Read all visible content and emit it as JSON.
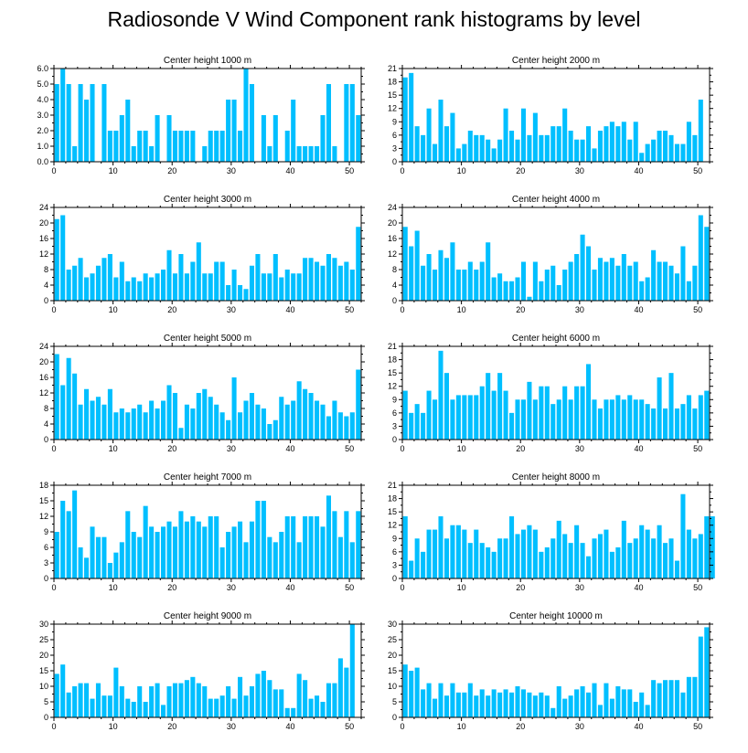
{
  "title": "Radiosonde V Wind Component rank histograms by level",
  "colors": {
    "bar": "#00BFFF",
    "bar_edge": "#ffffff",
    "axis": "#000000"
  },
  "chart_data": [
    {
      "type": "bar",
      "title": "Center height 1000 m",
      "xlim": [
        0,
        52
      ],
      "ylim": [
        0,
        6
      ],
      "xticks": [
        0,
        10,
        20,
        30,
        40,
        50
      ],
      "yticks": [
        0,
        1,
        2,
        3,
        4,
        5,
        6
      ],
      "ytick_labels": [
        "0.0",
        "1.0",
        "2.0",
        "3.0",
        "4.0",
        "5.0",
        "6.0"
      ],
      "values": [
        5,
        6,
        5,
        1,
        5,
        4,
        5,
        0,
        5,
        2,
        2,
        3,
        4,
        1,
        2,
        2,
        1,
        3,
        0,
        3,
        2,
        2,
        2,
        2,
        0,
        1,
        2,
        2,
        2,
        4,
        4,
        2,
        6,
        5,
        0,
        3,
        1,
        3,
        0,
        2,
        4,
        1,
        1,
        1,
        1,
        3,
        5,
        1,
        0,
        5,
        5,
        3
      ]
    },
    {
      "type": "bar",
      "title": "Center height 2000 m",
      "xlim": [
        0,
        52
      ],
      "ylim": [
        0,
        21
      ],
      "xticks": [
        0,
        10,
        20,
        30,
        40,
        50
      ],
      "yticks": [
        0,
        3,
        6,
        9,
        12,
        15,
        18,
        21
      ],
      "ytick_labels": [
        "0",
        "3",
        "6",
        "9",
        "12",
        "15",
        "18",
        "21"
      ],
      "values": [
        19,
        20,
        8,
        6,
        12,
        4,
        14,
        8,
        11,
        3,
        4,
        7,
        6,
        6,
        5,
        3,
        5,
        12,
        7,
        5,
        12,
        6,
        11,
        6,
        6,
        8,
        8,
        12,
        7,
        5,
        5,
        8,
        3,
        7,
        8,
        9,
        8,
        9,
        5,
        9,
        2,
        4,
        5,
        7,
        7,
        6,
        4,
        4,
        9,
        6,
        14
      ]
    },
    {
      "type": "bar",
      "title": "Center height 3000 m",
      "xlim": [
        0,
        52
      ],
      "ylim": [
        0,
        24
      ],
      "xticks": [
        0,
        10,
        20,
        30,
        40,
        50
      ],
      "yticks": [
        0,
        4,
        8,
        12,
        16,
        20,
        24
      ],
      "ytick_labels": [
        "0",
        "4",
        "8",
        "12",
        "16",
        "20",
        "24"
      ],
      "values": [
        21,
        22,
        8,
        9,
        11,
        6,
        7,
        9,
        11,
        12,
        6,
        10,
        5,
        6,
        5,
        7,
        6,
        7,
        8,
        13,
        7,
        12,
        7,
        10,
        15,
        7,
        7,
        10,
        10,
        4,
        8,
        4,
        3,
        9,
        12,
        7,
        7,
        12,
        6,
        8,
        7,
        7,
        11,
        11,
        10,
        9,
        12,
        11,
        9,
        10,
        8,
        19
      ]
    },
    {
      "type": "bar",
      "title": "Center height 4000 m",
      "xlim": [
        0,
        52
      ],
      "ylim": [
        0,
        24
      ],
      "xticks": [
        0,
        10,
        20,
        30,
        40,
        50
      ],
      "yticks": [
        0,
        4,
        8,
        12,
        16,
        20,
        24
      ],
      "ytick_labels": [
        "0",
        "4",
        "8",
        "12",
        "16",
        "20",
        "24"
      ],
      "values": [
        19,
        14,
        18,
        9,
        12,
        8,
        13,
        11,
        15,
        8,
        8,
        10,
        8,
        10,
        15,
        6,
        7,
        5,
        5,
        6,
        10,
        1,
        10,
        5,
        8,
        9,
        4,
        8,
        10,
        12,
        17,
        14,
        8,
        11,
        10,
        11,
        9,
        12,
        9,
        10,
        5,
        6,
        13,
        10,
        10,
        9,
        7,
        14,
        5,
        9,
        22,
        19
      ]
    },
    {
      "type": "bar",
      "title": "Center height 5000 m",
      "xlim": [
        0,
        52
      ],
      "ylim": [
        0,
        24
      ],
      "xticks": [
        0,
        10,
        20,
        30,
        40,
        50
      ],
      "yticks": [
        0,
        4,
        8,
        12,
        16,
        20,
        24
      ],
      "ytick_labels": [
        "0",
        "4",
        "8",
        "12",
        "16",
        "20",
        "24"
      ],
      "values": [
        22,
        14,
        21,
        17,
        9,
        13,
        10,
        11,
        9,
        13,
        7,
        8,
        7,
        8,
        9,
        7,
        10,
        8,
        10,
        14,
        12,
        3,
        9,
        8,
        12,
        13,
        11,
        9,
        7,
        5,
        16,
        7,
        10,
        12,
        9,
        8,
        4,
        5,
        11,
        9,
        10,
        15,
        13,
        12,
        10,
        9,
        6,
        10,
        7,
        6,
        7,
        18
      ]
    },
    {
      "type": "bar",
      "title": "Center height 6000 m",
      "xlim": [
        0,
        52
      ],
      "ylim": [
        0,
        21
      ],
      "xticks": [
        0,
        10,
        20,
        30,
        40,
        50
      ],
      "yticks": [
        0,
        3,
        6,
        9,
        12,
        15,
        18,
        21
      ],
      "ytick_labels": [
        "0",
        "3",
        "6",
        "9",
        "12",
        "15",
        "18",
        "21"
      ],
      "values": [
        11,
        6,
        8,
        6,
        11,
        9,
        20,
        15,
        9,
        10,
        10,
        10,
        10,
        12,
        15,
        11,
        15,
        11,
        6,
        9,
        9,
        13,
        9,
        12,
        12,
        8,
        9,
        12,
        9,
        12,
        12,
        17,
        9,
        7,
        9,
        9,
        10,
        9,
        10,
        9,
        9,
        8,
        7,
        14,
        7,
        15,
        7,
        8,
        10,
        7,
        10,
        11
      ]
    },
    {
      "type": "bar",
      "title": "Center height 7000 m",
      "xlim": [
        0,
        52
      ],
      "ylim": [
        0,
        18
      ],
      "xticks": [
        0,
        10,
        20,
        30,
        40,
        50
      ],
      "yticks": [
        0,
        3,
        6,
        9,
        12,
        15,
        18
      ],
      "ytick_labels": [
        "0",
        "3",
        "6",
        "9",
        "12",
        "15",
        "18"
      ],
      "values": [
        9,
        15,
        13,
        17,
        6,
        4,
        10,
        8,
        8,
        3,
        5,
        7,
        13,
        9,
        8,
        14,
        10,
        9,
        10,
        11,
        10,
        13,
        11,
        12,
        11,
        10,
        12,
        12,
        6,
        9,
        10,
        11,
        7,
        11,
        15,
        15,
        8,
        7,
        9,
        12,
        12,
        7,
        12,
        12,
        12,
        10,
        16,
        13,
        8,
        13,
        7,
        13
      ]
    },
    {
      "type": "bar",
      "title": "Center height 8000 m",
      "xlim": [
        0,
        52
      ],
      "ylim": [
        0,
        21
      ],
      "xticks": [
        0,
        10,
        20,
        30,
        40,
        50
      ],
      "yticks": [
        0,
        3,
        6,
        9,
        12,
        15,
        18,
        21
      ],
      "ytick_labels": [
        "0",
        "3",
        "6",
        "9",
        "12",
        "15",
        "18",
        "21"
      ],
      "values": [
        14,
        4,
        9,
        6,
        11,
        11,
        14,
        9,
        12,
        12,
        11,
        8,
        11,
        8,
        7,
        6,
        9,
        9,
        14,
        10,
        11,
        12,
        11,
        6,
        7,
        9,
        13,
        10,
        8,
        12,
        8,
        5,
        9,
        10,
        11,
        6,
        7,
        13,
        8,
        9,
        12,
        11,
        9,
        12,
        8,
        9,
        4,
        19,
        11,
        9,
        10,
        14,
        14
      ]
    },
    {
      "type": "bar",
      "title": "Center height 9000 m",
      "xlim": [
        0,
        52
      ],
      "ylim": [
        0,
        30
      ],
      "xticks": [
        0,
        10,
        20,
        30,
        40,
        50
      ],
      "yticks": [
        0,
        5,
        10,
        15,
        20,
        25,
        30
      ],
      "ytick_labels": [
        "0",
        "5",
        "10",
        "15",
        "20",
        "25",
        "30"
      ],
      "values": [
        14,
        17,
        8,
        10,
        11,
        11,
        6,
        11,
        7,
        7,
        16,
        10,
        6,
        5,
        10,
        5,
        10,
        11,
        4,
        10,
        11,
        11,
        12,
        13,
        11,
        10,
        6,
        6,
        7,
        10,
        6,
        13,
        7,
        10,
        14,
        15,
        12,
        9,
        9,
        3,
        3,
        14,
        12,
        6,
        7,
        5,
        11,
        11,
        19,
        16,
        30
      ]
    },
    {
      "type": "bar",
      "title": "Center height 10000 m",
      "xlim": [
        0,
        52
      ],
      "ylim": [
        0,
        30
      ],
      "xticks": [
        0,
        10,
        20,
        30,
        40,
        50
      ],
      "yticks": [
        0,
        5,
        10,
        15,
        20,
        25,
        30
      ],
      "ytick_labels": [
        "0",
        "5",
        "10",
        "15",
        "20",
        "25",
        "30"
      ],
      "values": [
        17,
        15,
        16,
        9,
        11,
        6,
        11,
        7,
        11,
        8,
        8,
        11,
        7,
        9,
        7,
        9,
        8,
        9,
        8,
        10,
        9,
        8,
        7,
        8,
        7,
        3,
        10,
        6,
        7,
        9,
        10,
        8,
        11,
        4,
        11,
        6,
        10,
        9,
        9,
        5,
        8,
        4,
        12,
        11,
        12,
        12,
        12,
        8,
        13,
        13,
        26,
        29
      ]
    }
  ]
}
